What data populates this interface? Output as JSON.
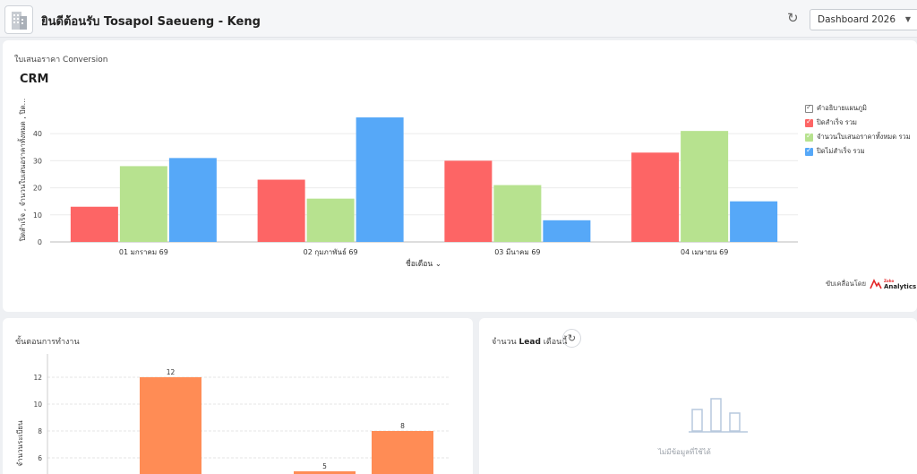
{
  "header": {
    "title": "ยินดีต้อนรับ Tosapol Saeueng - Keng",
    "dashboard_select": "Dashboard 2026"
  },
  "crm_card": {
    "subtitle": "ใบเสนอราคา Conversion",
    "chart_title": "CRM",
    "legend_header": "คำอธิบายแผนภูมิ",
    "powered_by": "ขับเคลื่อนโดย",
    "brand_top": "Zoho",
    "brand_bottom": "Analytics"
  },
  "steps_card": {
    "title": "ขั้นตอนการทำงาน"
  },
  "lead_card": {
    "title_prefix": "จำนวน ",
    "title_bold": "Lead",
    "title_suffix": " เดือนนี้",
    "no_data": "ไม่มีข้อมูลที่ใช้ได้"
  },
  "colors": {
    "red": "#fd6565",
    "green": "#b7e28f",
    "blue": "#56a8f8",
    "orange": "#ff8c55"
  },
  "chart_data": [
    {
      "type": "bar",
      "title": "CRM",
      "categories": [
        "01 มกราคม 69",
        "02 กุมภาพันธ์ 69",
        "03 มีนาคม 69",
        "04 เมษายน 69"
      ],
      "series": [
        {
          "name": "ปิดสำเร็จ รวม",
          "values": [
            13,
            23,
            30,
            33
          ],
          "color": "#fd6565"
        },
        {
          "name": "จำนวนใบเสนอราคาทั้งหมด รวม",
          "values": [
            28,
            16,
            21,
            41
          ],
          "color": "#b7e28f"
        },
        {
          "name": "ปิดไม่สำเร็จ รวม",
          "values": [
            31,
            46,
            8,
            15
          ],
          "color": "#56a8f8"
        }
      ],
      "xlabel": "ชื่อเดือน",
      "ylabel": "ปิดสำเร็จ , จำนวนใบเสนอราคาทั้งหมด , ปิด...",
      "yticks": [
        0,
        10,
        20,
        30,
        40
      ],
      "ylim": [
        0,
        48
      ],
      "legend": "right",
      "grid": true
    },
    {
      "type": "bar",
      "ylabel": "จำนวนระเบียน",
      "values": [
        12,
        5,
        8
      ],
      "value_labels": [
        "12",
        "5",
        "8"
      ],
      "yticks": [
        6,
        8,
        10,
        12
      ],
      "ylim": [
        4.8,
        14
      ],
      "color": "#ff8c55",
      "grid": true
    }
  ]
}
